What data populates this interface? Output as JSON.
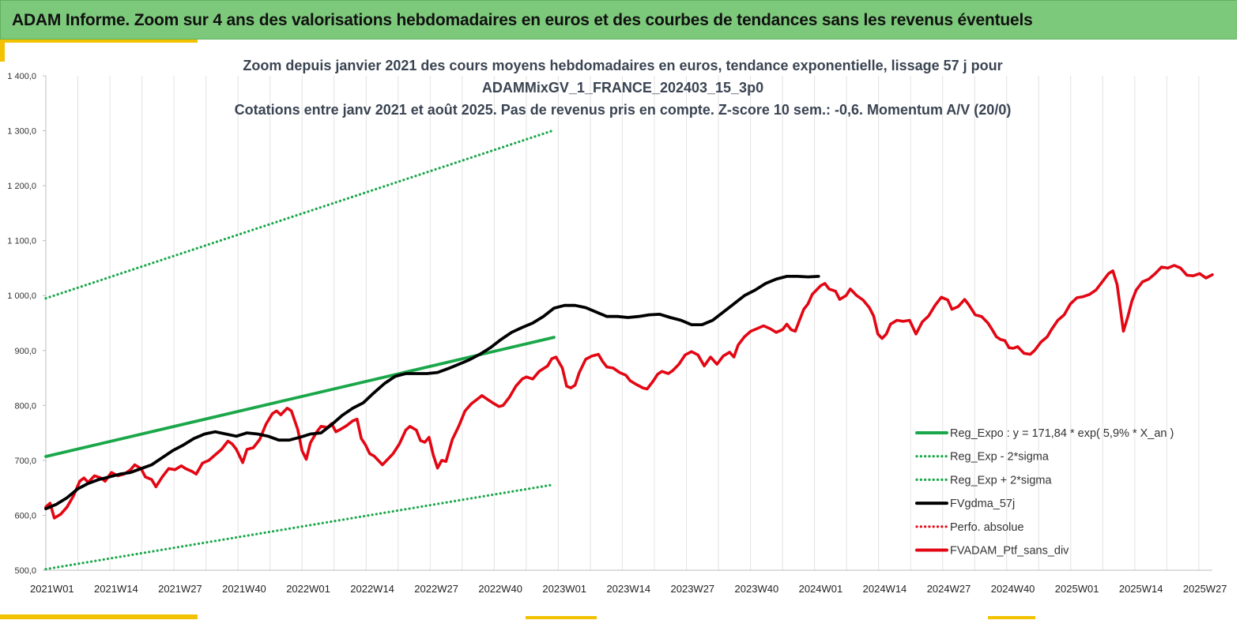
{
  "banner": {
    "title": "ADAM Informe. Zoom sur 4 ans des valorisations hebdomadaires en euros et des courbes de tendances sans les revenus éventuels"
  },
  "colors": {
    "banner_bg": "#7dc97b",
    "trend": "#1aa74a",
    "smooth": "#000000",
    "price": "#e30613",
    "deco": "#f2c200"
  },
  "chart_data": {
    "type": "line",
    "title_lines": [
      "Zoom depuis janvier 2021 des cours moyens hebdomadaires  en euros, tendance exponentielle, lissage 57 j pour",
      "ADAMMixGV_1_FRANCE_202403_15_3p0",
      "Cotations entre janv 2021 et août 2025. Pas de revenus pris en compte. Z-score 10 sem.: -0,6. Momentum A/V (20/0)"
    ],
    "ylim": [
      500,
      1400
    ],
    "y_ticks": [
      500,
      600,
      700,
      800,
      900,
      1000,
      1100,
      1200,
      1300,
      1400
    ],
    "y_tick_labels": [
      "500,0",
      "600,0",
      "700,0",
      "800,0",
      "900,0",
      "1 000,0",
      "1 100,0",
      "1 200,0",
      "1 300,0",
      "1 400,0"
    ],
    "x_start_label": "2021W01",
    "x_count": 241,
    "x_tick_labels": [
      "2021W01",
      "2021W14",
      "2021W27",
      "2021W40",
      "2022W01",
      "2022W14",
      "2022W27",
      "2022W40",
      "2023W01",
      "2023W14",
      "2023W27",
      "2023W40",
      "2024W01",
      "2024W14",
      "2024W27",
      "2024W40",
      "2025W01",
      "2025W14",
      "2025W27"
    ],
    "grid": "vertical",
    "legend_position": "bottom-right",
    "series": [
      {
        "name": "Reg_Expo : y = 171,84 * exp( 5,9% *  X_an )",
        "style": "solid-thick",
        "color": "#1aa74a",
        "points": [
          [
            0,
            707
          ],
          [
            240,
            924
          ]
        ]
      },
      {
        "name": "Reg_Exp - 2*sigma",
        "style": "dotted",
        "color": "#1aa74a",
        "points": [
          [
            0,
            502
          ],
          [
            240,
            656
          ]
        ]
      },
      {
        "name": "Reg_Exp + 2*sigma",
        "style": "dotted",
        "color": "#1aa74a",
        "points": [
          [
            0,
            995
          ],
          [
            240,
            1301
          ]
        ]
      },
      {
        "name": "FVgdma_57j",
        "style": "solid-thick",
        "color": "#000000",
        "points": [
          [
            0,
            612
          ],
          [
            5,
            620
          ],
          [
            10,
            632
          ],
          [
            15,
            648
          ],
          [
            20,
            658
          ],
          [
            25,
            665
          ],
          [
            30,
            670
          ],
          [
            35,
            675
          ],
          [
            40,
            678
          ],
          [
            45,
            685
          ],
          [
            50,
            692
          ],
          [
            55,
            705
          ],
          [
            60,
            718
          ],
          [
            65,
            728
          ],
          [
            70,
            740
          ],
          [
            75,
            748
          ],
          [
            80,
            752
          ],
          [
            85,
            748
          ],
          [
            90,
            744
          ],
          [
            95,
            750
          ],
          [
            100,
            748
          ],
          [
            105,
            744
          ],
          [
            110,
            737
          ],
          [
            115,
            737
          ],
          [
            120,
            742
          ],
          [
            125,
            748
          ],
          [
            130,
            750
          ],
          [
            135,
            765
          ],
          [
            140,
            782
          ],
          [
            145,
            795
          ],
          [
            150,
            805
          ],
          [
            155,
            823
          ],
          [
            160,
            840
          ],
          [
            165,
            853
          ],
          [
            170,
            858
          ],
          [
            175,
            858
          ],
          [
            180,
            858
          ],
          [
            185,
            860
          ],
          [
            190,
            867
          ],
          [
            195,
            875
          ],
          [
            200,
            883
          ],
          [
            205,
            893
          ],
          [
            210,
            905
          ],
          [
            215,
            920
          ],
          [
            220,
            933
          ],
          [
            225,
            942
          ],
          [
            230,
            950
          ],
          [
            235,
            962
          ],
          [
            240,
            977
          ],
          [
            245,
            982
          ],
          [
            250,
            982
          ],
          [
            255,
            978
          ],
          [
            260,
            970
          ],
          [
            265,
            962
          ],
          [
            270,
            962
          ],
          [
            275,
            960
          ],
          [
            280,
            962
          ],
          [
            285,
            965
          ],
          [
            290,
            966
          ],
          [
            295,
            960
          ],
          [
            300,
            955
          ],
          [
            305,
            947
          ],
          [
            310,
            947
          ],
          [
            315,
            955
          ],
          [
            320,
            970
          ],
          [
            325,
            985
          ],
          [
            330,
            1000
          ],
          [
            335,
            1010
          ],
          [
            340,
            1022
          ],
          [
            345,
            1030
          ],
          [
            350,
            1035
          ],
          [
            355,
            1035
          ],
          [
            360,
            1034
          ],
          [
            365,
            1035
          ]
        ]
      },
      {
        "name": "Perfo. absolue",
        "style": "dotted",
        "color": "#e30613",
        "points": []
      },
      {
        "name": "FVADAM_Ptf_sans_div",
        "style": "solid-thick",
        "color": "#e30613",
        "points": [
          [
            0,
            615
          ],
          [
            2,
            622
          ],
          [
            4,
            595
          ],
          [
            7,
            602
          ],
          [
            10,
            615
          ],
          [
            13,
            635
          ],
          [
            16,
            662
          ],
          [
            18,
            668
          ],
          [
            20,
            660
          ],
          [
            23,
            672
          ],
          [
            26,
            668
          ],
          [
            28,
            662
          ],
          [
            31,
            678
          ],
          [
            34,
            672
          ],
          [
            37,
            675
          ],
          [
            40,
            683
          ],
          [
            42,
            692
          ],
          [
            45,
            685
          ],
          [
            47,
            670
          ],
          [
            50,
            665
          ],
          [
            52,
            652
          ],
          [
            55,
            670
          ],
          [
            58,
            685
          ],
          [
            61,
            683
          ],
          [
            64,
            690
          ],
          [
            66,
            685
          ],
          [
            69,
            680
          ],
          [
            71,
            675
          ],
          [
            74,
            695
          ],
          [
            77,
            700
          ],
          [
            80,
            710
          ],
          [
            83,
            720
          ],
          [
            86,
            735
          ],
          [
            88,
            730
          ],
          [
            90,
            720
          ],
          [
            93,
            696
          ],
          [
            95,
            720
          ],
          [
            98,
            723
          ],
          [
            101,
            738
          ],
          [
            104,
            766
          ],
          [
            107,
            785
          ],
          [
            109,
            790
          ],
          [
            111,
            783
          ],
          [
            114,
            795
          ],
          [
            116,
            790
          ],
          [
            119,
            756
          ],
          [
            121,
            718
          ],
          [
            123,
            702
          ],
          [
            125,
            732
          ],
          [
            128,
            752
          ],
          [
            130,
            762
          ],
          [
            133,
            760
          ],
          [
            135,
            767
          ],
          [
            137,
            752
          ],
          [
            139,
            756
          ],
          [
            142,
            763
          ],
          [
            145,
            772
          ],
          [
            147,
            775
          ],
          [
            149,
            740
          ],
          [
            151,
            728
          ],
          [
            153,
            712
          ],
          [
            155,
            708
          ],
          [
            157,
            700
          ],
          [
            159,
            692
          ],
          [
            161,
            700
          ],
          [
            164,
            712
          ],
          [
            167,
            730
          ],
          [
            170,
            755
          ],
          [
            172,
            762
          ],
          [
            175,
            755
          ],
          [
            177,
            736
          ],
          [
            179,
            733
          ],
          [
            181,
            742
          ],
          [
            183,
            710
          ],
          [
            185,
            686
          ],
          [
            187,
            700
          ],
          [
            189,
            698
          ],
          [
            192,
            738
          ],
          [
            195,
            762
          ],
          [
            198,
            790
          ],
          [
            201,
            803
          ],
          [
            204,
            812
          ],
          [
            206,
            818
          ],
          [
            209,
            810
          ],
          [
            211,
            805
          ],
          [
            214,
            798
          ],
          [
            216,
            800
          ],
          [
            219,
            815
          ],
          [
            222,
            835
          ],
          [
            225,
            848
          ],
          [
            227,
            852
          ],
          [
            230,
            848
          ],
          [
            233,
            862
          ],
          [
            235,
            867
          ],
          [
            237,
            872
          ],
          [
            239,
            885
          ],
          [
            241,
            888
          ],
          [
            244,
            868
          ],
          [
            246,
            835
          ],
          [
            248,
            832
          ],
          [
            250,
            837
          ],
          [
            252,
            860
          ],
          [
            255,
            884
          ],
          [
            258,
            890
          ],
          [
            261,
            893
          ],
          [
            263,
            880
          ],
          [
            265,
            870
          ],
          [
            268,
            868
          ],
          [
            271,
            860
          ],
          [
            274,
            855
          ],
          [
            276,
            845
          ],
          [
            279,
            838
          ],
          [
            282,
            832
          ],
          [
            284,
            830
          ],
          [
            287,
            845
          ],
          [
            289,
            857
          ],
          [
            291,
            862
          ],
          [
            294,
            858
          ],
          [
            296,
            863
          ],
          [
            299,
            875
          ],
          [
            302,
            892
          ],
          [
            305,
            898
          ],
          [
            308,
            892
          ],
          [
            311,
            872
          ],
          [
            314,
            888
          ],
          [
            317,
            875
          ],
          [
            320,
            890
          ],
          [
            323,
            897
          ],
          [
            325,
            888
          ],
          [
            327,
            910
          ],
          [
            330,
            925
          ],
          [
            333,
            935
          ],
          [
            336,
            940
          ],
          [
            339,
            945
          ],
          [
            342,
            940
          ],
          [
            345,
            933
          ],
          [
            348,
            938
          ],
          [
            350,
            948
          ],
          [
            352,
            938
          ],
          [
            354,
            935
          ],
          [
            356,
            955
          ],
          [
            358,
            975
          ],
          [
            360,
            985
          ],
          [
            362,
            1002
          ],
          [
            364,
            1010
          ],
          [
            366,
            1018
          ],
          [
            368,
            1022
          ],
          [
            370,
            1012
          ],
          [
            373,
            1008
          ],
          [
            375,
            993
          ],
          [
            378,
            1000
          ],
          [
            380,
            1012
          ],
          [
            383,
            1000
          ],
          [
            386,
            992
          ],
          [
            389,
            978
          ],
          [
            391,
            963
          ],
          [
            393,
            930
          ],
          [
            395,
            922
          ],
          [
            397,
            930
          ],
          [
            399,
            948
          ],
          [
            402,
            955
          ],
          [
            405,
            953
          ],
          [
            408,
            955
          ],
          [
            411,
            930
          ],
          [
            414,
            952
          ],
          [
            417,
            963
          ],
          [
            420,
            982
          ],
          [
            423,
            997
          ],
          [
            426,
            992
          ],
          [
            428,
            975
          ],
          [
            431,
            980
          ],
          [
            434,
            993
          ],
          [
            436,
            983
          ],
          [
            439,
            965
          ],
          [
            442,
            962
          ],
          [
            445,
            950
          ],
          [
            447,
            938
          ],
          [
            449,
            925
          ],
          [
            451,
            920
          ],
          [
            453,
            918
          ],
          [
            455,
            905
          ],
          [
            457,
            904
          ],
          [
            459,
            907
          ],
          [
            462,
            895
          ],
          [
            465,
            893
          ],
          [
            467,
            900
          ],
          [
            470,
            915
          ],
          [
            473,
            925
          ],
          [
            475,
            938
          ],
          [
            478,
            955
          ],
          [
            481,
            965
          ],
          [
            484,
            985
          ],
          [
            487,
            996
          ],
          [
            490,
            998
          ],
          [
            493,
            1002
          ],
          [
            496,
            1010
          ],
          [
            499,
            1025
          ],
          [
            502,
            1040
          ],
          [
            504,
            1045
          ],
          [
            506,
            1020
          ],
          [
            509,
            935
          ],
          [
            511,
            960
          ],
          [
            513,
            990
          ],
          [
            515,
            1010
          ],
          [
            518,
            1025
          ],
          [
            521,
            1030
          ],
          [
            524,
            1040
          ],
          [
            527,
            1052
          ],
          [
            530,
            1050
          ],
          [
            533,
            1055
          ],
          [
            536,
            1050
          ],
          [
            539,
            1037
          ],
          [
            542,
            1036
          ],
          [
            545,
            1040
          ],
          [
            548,
            1032
          ],
          [
            551,
            1038
          ]
        ]
      }
    ],
    "x_units_per_week_note": null
  }
}
